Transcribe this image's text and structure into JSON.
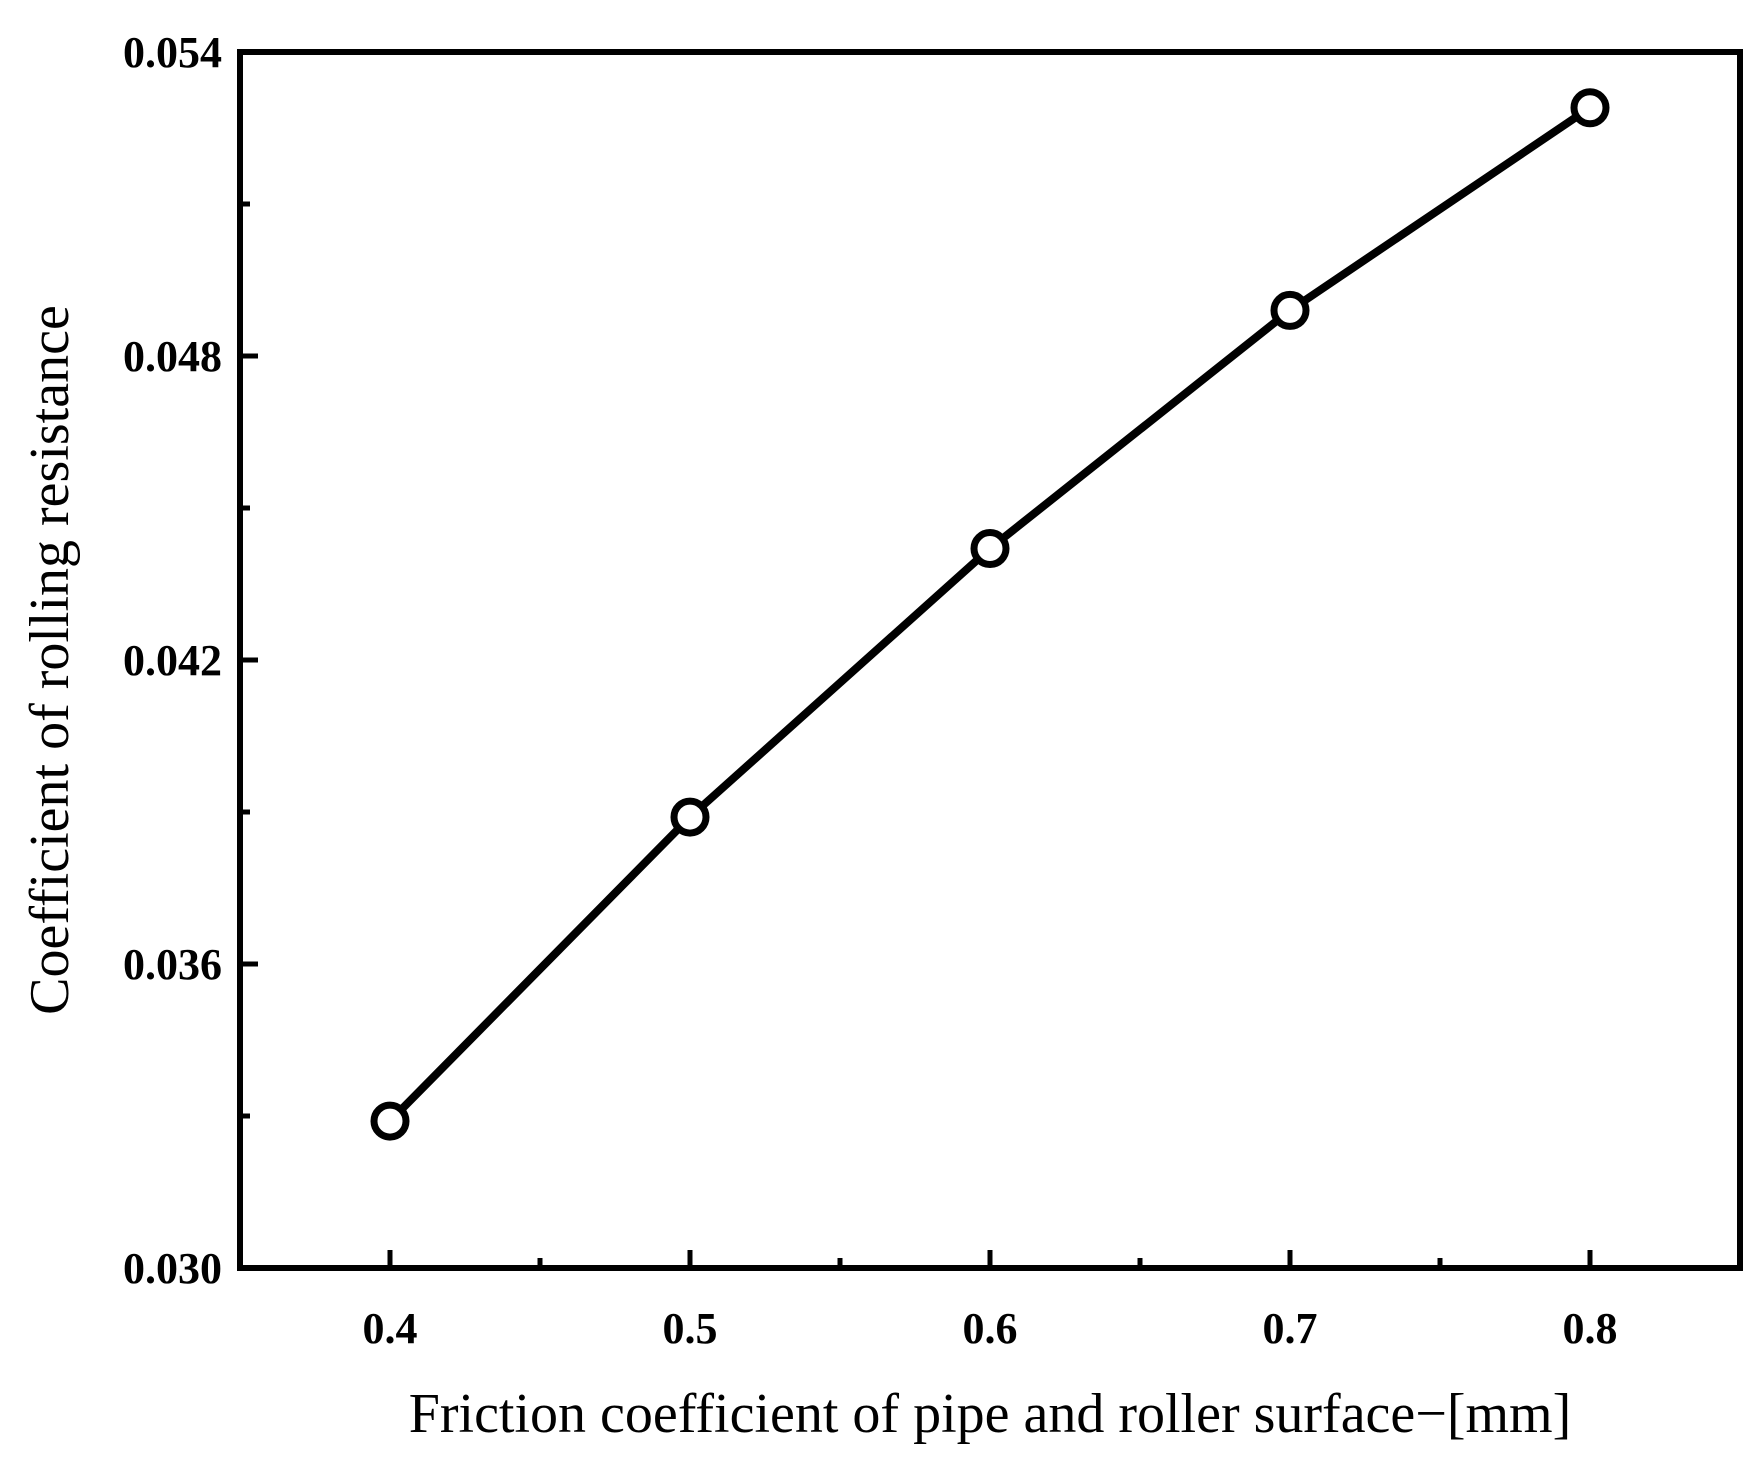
{
  "chart_data": {
    "type": "line",
    "title": "",
    "xlabel": "Friction coefficient of pipe and roller surface−[mm]",
    "ylabel": "Coefficient of rolling resistance",
    "xlim": [
      0.35,
      0.85
    ],
    "ylim": [
      0.03,
      0.054
    ],
    "x_major_ticks": [
      0.4,
      0.5,
      0.6,
      0.7,
      0.8
    ],
    "x_tick_labels": [
      "0.4",
      "0.5",
      "0.6",
      "0.7",
      "0.8"
    ],
    "x_minor_ticks": [
      0.45,
      0.55,
      0.65,
      0.75
    ],
    "y_major_ticks": [
      0.03,
      0.036,
      0.042,
      0.048,
      0.054
    ],
    "y_tick_labels": [
      "0.030",
      "0.036",
      "0.042",
      "0.048",
      "0.054"
    ],
    "y_minor_ticks": [
      0.033,
      0.039,
      0.045,
      0.051
    ],
    "grid": false,
    "legend": "none",
    "series": [
      {
        "x": [
          0.4,
          0.5,
          0.6,
          0.7,
          0.8
        ],
        "values": [
          0.0329,
          0.0389,
          0.0442,
          0.0489,
          0.0529
        ],
        "color": "#000000",
        "marker": "open-circle"
      }
    ]
  }
}
